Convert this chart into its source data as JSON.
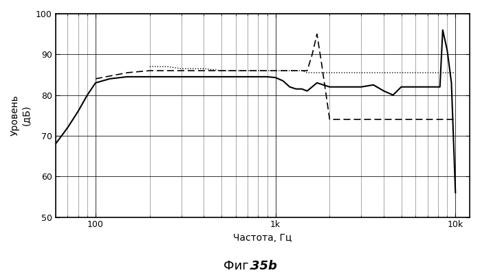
{
  "title": "",
  "xlabel": "Частота, Гц",
  "ylabel": "Уровень\n(дБ)",
  "ylim": [
    50,
    100
  ],
  "xlim": [
    60,
    12000
  ],
  "yticks": [
    50,
    60,
    70,
    80,
    90,
    100
  ],
  "xtick_labels": [
    "100",
    "1k",
    "10k"
  ],
  "xtick_positions": [
    100,
    1000,
    10000
  ],
  "caption": "Фиг. 35b",
  "bg_color": "#ffffff",
  "grid_color": "#000000",
  "line_color": "#000000",
  "solid_x": [
    60,
    70,
    80,
    90,
    100,
    120,
    150,
    180,
    200,
    250,
    300,
    400,
    500,
    600,
    700,
    800,
    900,
    1000,
    1100,
    1200,
    1300,
    1400,
    1500,
    1700,
    2000,
    2500,
    3000,
    3500,
    4000,
    4500,
    5000,
    5500,
    6000,
    6500,
    7000,
    7500,
    8000,
    8200,
    8500,
    9000,
    9500,
    10000
  ],
  "solid_y": [
    68,
    72,
    76,
    80,
    83,
    84,
    84.5,
    84.5,
    84.5,
    84.5,
    84.5,
    84.5,
    84.5,
    84.5,
    84.5,
    84.5,
    84.5,
    84.3,
    83.5,
    82,
    81.5,
    81.5,
    81,
    83,
    82,
    82,
    82,
    82.5,
    81,
    80,
    82,
    82,
    82,
    82,
    82,
    82,
    82,
    82,
    96,
    91,
    83,
    56
  ],
  "dashed_x": [
    100,
    150,
    200,
    250,
    300,
    350,
    400,
    500,
    600,
    700,
    800,
    900,
    1000,
    1100,
    1200,
    1300,
    1400,
    1500,
    1600,
    1700,
    1800,
    2000,
    2500,
    3000,
    3500,
    4000,
    5000,
    6000,
    7000,
    8000,
    9000,
    10000
  ],
  "dashed_y": [
    84,
    85.5,
    86,
    86,
    86,
    86,
    86,
    86,
    86,
    86,
    86,
    86,
    86,
    86,
    86,
    86,
    86,
    86,
    90,
    95,
    88,
    74,
    74,
    74,
    74,
    74,
    74,
    74,
    74,
    74,
    74,
    74
  ],
  "dotted_x": [
    200,
    250,
    300,
    350,
    400,
    500,
    600,
    700,
    800,
    900,
    1000,
    1100,
    1200,
    1300,
    1400,
    1500,
    1600,
    1700,
    1800,
    2000,
    2500,
    3000,
    3500,
    4000,
    5000,
    6000,
    7000,
    8000,
    9000,
    10000
  ],
  "dotted_y": [
    87,
    87,
    86.5,
    86.5,
    86.5,
    86,
    86,
    86,
    86,
    86,
    86,
    86,
    86,
    86,
    86,
    85.5,
    85.5,
    85.5,
    85.5,
    85.5,
    85.5,
    85.5,
    85.5,
    85.5,
    85.5,
    85.5,
    85.5,
    85.5,
    85.5,
    85.5
  ]
}
